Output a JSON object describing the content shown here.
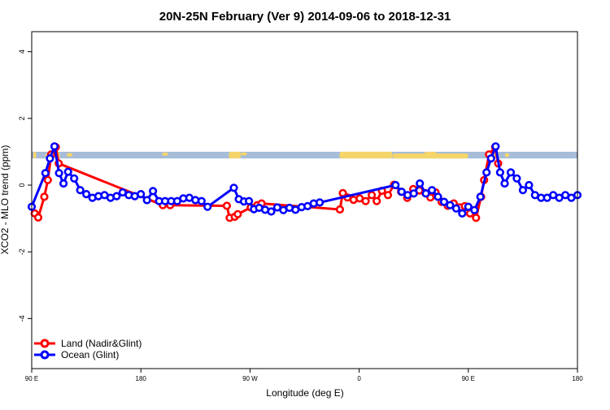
{
  "chart_data": {
    "type": "line",
    "title": "20N-25N February (Ver 9)   2014-09-06 to 2018-12-31",
    "xlabel": "Longitude (deg E)",
    "ylabel": "XCO2 - MLO trend (ppm)",
    "xlim": [
      90,
      450
    ],
    "ylim": [
      -5.5,
      4.6
    ],
    "x_ticks": [
      {
        "value": 90,
        "label": "90 E"
      },
      {
        "value": 162,
        "label": "180"
      },
      {
        "value": 234,
        "label": "90 W"
      },
      {
        "value": 306,
        "label": "0"
      },
      {
        "value": 378,
        "label": "90 E"
      },
      {
        "value": 450,
        "label": "180"
      }
    ],
    "y_ticks": [
      -4,
      -2,
      0,
      2,
      4
    ],
    "grid": false,
    "legend_position": "bottom-left",
    "land_ocean_band": {
      "y_range": [
        0.8,
        1.0
      ],
      "ocean_color": "#a6bcd8",
      "land_color": "#f5d56a"
    },
    "series": [
      {
        "name": "Land (Nadir&Glint)",
        "color": "#ff0000",
        "points": [
          [
            92,
            -0.85
          ],
          [
            94.3,
            -0.97
          ],
          [
            98.3,
            -0.35
          ],
          [
            100.6,
            0.15
          ],
          [
            102.9,
            0.92
          ],
          [
            105.9,
            1.14
          ],
          [
            107.8,
            0.65
          ],
          [
            176.5,
            -0.6
          ],
          [
            181.3,
            -0.56
          ],
          [
            181.3,
            -0.6
          ],
          [
            218.7,
            -0.62
          ],
          [
            220.6,
            -0.98
          ],
          [
            223.9,
            -0.95
          ],
          [
            225.9,
            -0.87
          ],
          [
            234.5,
            -0.67
          ],
          [
            238.8,
            -0.6
          ],
          [
            241.6,
            -0.55
          ],
          [
            293.3,
            -0.73
          ],
          [
            295.2,
            -0.24
          ],
          [
            298.3,
            -0.37
          ],
          [
            302.3,
            -0.44
          ],
          [
            306.3,
            -0.4
          ],
          [
            310.3,
            -0.48
          ],
          [
            314.3,
            -0.3
          ],
          [
            317.6,
            -0.48
          ],
          [
            321,
            -0.17
          ],
          [
            325,
            -0.3
          ],
          [
            329,
            0.01
          ],
          [
            333.7,
            -0.2
          ],
          [
            337.7,
            -0.38
          ],
          [
            341.7,
            -0.12
          ],
          [
            345.7,
            -0.16
          ],
          [
            349.7,
            -0.24
          ],
          [
            353,
            -0.37
          ],
          [
            356.4,
            -0.22
          ],
          [
            360.4,
            -0.5
          ],
          [
            364.4,
            -0.62
          ],
          [
            368.4,
            -0.55
          ],
          [
            372.4,
            -0.67
          ],
          [
            375.7,
            -0.63
          ],
          [
            379.1,
            -0.85
          ],
          [
            383.1,
            -0.98
          ],
          [
            386.4,
            -0.35
          ],
          [
            388.4,
            0.15
          ],
          [
            391.7,
            0.92
          ],
          [
            395.7,
            1.14
          ],
          [
            397.7,
            0.65
          ]
        ]
      },
      {
        "name": "Ocean (Glint)",
        "color": "#0000ff",
        "points": [
          [
            90,
            -0.65
          ],
          [
            99,
            0.36
          ],
          [
            102,
            0.8
          ],
          [
            105,
            1.16
          ],
          [
            108,
            0.36
          ],
          [
            111,
            0.05
          ],
          [
            114,
            0.4
          ],
          [
            118,
            0.2
          ],
          [
            122,
            -0.15
          ],
          [
            126,
            -0.27
          ],
          [
            130,
            -0.38
          ],
          [
            134,
            -0.33
          ],
          [
            138,
            -0.3
          ],
          [
            142,
            -0.38
          ],
          [
            146,
            -0.33
          ],
          [
            150,
            -0.22
          ],
          [
            154,
            -0.3
          ],
          [
            158,
            -0.33
          ],
          [
            162,
            -0.27
          ],
          [
            166,
            -0.45
          ],
          [
            170,
            -0.18
          ],
          [
            174,
            -0.48
          ],
          [
            178,
            -0.48
          ],
          [
            182,
            -0.48
          ],
          [
            186,
            -0.48
          ],
          [
            190,
            -0.4
          ],
          [
            194,
            -0.38
          ],
          [
            198,
            -0.45
          ],
          [
            202,
            -0.48
          ],
          [
            206,
            -0.65
          ],
          [
            223.3,
            -0.08
          ],
          [
            226.6,
            -0.42
          ],
          [
            230,
            -0.49
          ],
          [
            233.3,
            -0.48
          ],
          [
            236.6,
            -0.72
          ],
          [
            240,
            -0.68
          ],
          [
            244,
            -0.74
          ],
          [
            248,
            -0.79
          ],
          [
            252,
            -0.67
          ],
          [
            256,
            -0.75
          ],
          [
            260,
            -0.68
          ],
          [
            264,
            -0.74
          ],
          [
            268,
            -0.66
          ],
          [
            272,
            -0.63
          ],
          [
            276,
            -0.55
          ],
          [
            280,
            -0.52
          ],
          [
            330,
            0.0
          ],
          [
            334,
            -0.2
          ],
          [
            338,
            -0.3
          ],
          [
            342,
            -0.25
          ],
          [
            346,
            0.05
          ],
          [
            350,
            -0.25
          ],
          [
            354,
            -0.15
          ],
          [
            358,
            -0.35
          ],
          [
            362,
            -0.5
          ],
          [
            366,
            -0.6
          ],
          [
            370,
            -0.7
          ],
          [
            374,
            -0.85
          ],
          [
            378,
            -0.65
          ],
          [
            382,
            -0.75
          ],
          [
            386,
            -0.35
          ],
          [
            390,
            0.38
          ],
          [
            393,
            0.8
          ],
          [
            396,
            1.16
          ],
          [
            399,
            0.38
          ],
          [
            402,
            0.05
          ],
          [
            406,
            0.38
          ],
          [
            410,
            0.2
          ],
          [
            414,
            -0.15
          ],
          [
            418,
            0.0
          ],
          [
            422,
            -0.3
          ],
          [
            426,
            -0.38
          ],
          [
            430,
            -0.38
          ],
          [
            434,
            -0.3
          ],
          [
            438,
            -0.38
          ],
          [
            442,
            -0.3
          ],
          [
            446,
            -0.38
          ],
          [
            450,
            -0.3
          ]
        ]
      }
    ]
  }
}
